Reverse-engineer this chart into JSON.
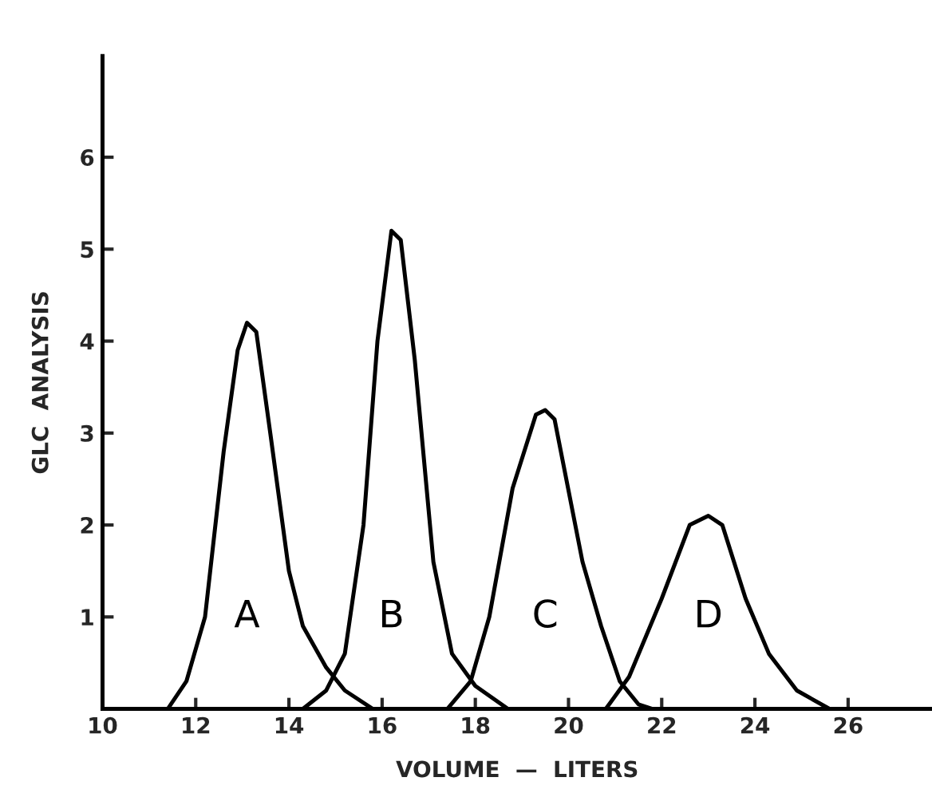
{
  "chart_data": {
    "type": "line",
    "xlabel": "VOLUME  —  LITERS",
    "ylabel": "GLC  ANALYSIS",
    "xlim": [
      10,
      27.8
    ],
    "ylim": [
      0,
      7.1
    ],
    "xticks": [
      10,
      12,
      14,
      16,
      18,
      20,
      22,
      24,
      26
    ],
    "yticks": [
      1,
      2,
      3,
      4,
      5,
      6
    ],
    "grid": false,
    "legend": false,
    "marker": "none",
    "line_style": "solid",
    "series": [
      {
        "name": "A",
        "color": "#000000",
        "x": [
          11.4,
          11.8,
          12.2,
          12.6,
          12.9,
          13.1,
          13.3,
          13.6,
          14.0,
          14.3,
          14.8,
          15.2,
          15.8
        ],
        "values": [
          0,
          0.3,
          1.0,
          2.8,
          3.9,
          4.2,
          4.1,
          3.0,
          1.5,
          0.9,
          0.45,
          0.2,
          0
        ]
      },
      {
        "name": "B",
        "color": "#000000",
        "x": [
          14.3,
          14.8,
          15.2,
          15.6,
          15.9,
          16.2,
          16.4,
          16.7,
          17.1,
          17.5,
          18.0,
          18.7
        ],
        "values": [
          0,
          0.2,
          0.6,
          2.0,
          4.0,
          5.2,
          5.1,
          3.8,
          1.6,
          0.6,
          0.25,
          0
        ]
      },
      {
        "name": "C",
        "color": "#000000",
        "x": [
          17.4,
          17.9,
          18.3,
          18.8,
          19.3,
          19.5,
          19.7,
          20.3,
          20.7,
          21.1,
          21.5,
          21.8
        ],
        "values": [
          0,
          0.3,
          1.0,
          2.4,
          3.2,
          3.25,
          3.15,
          1.6,
          0.9,
          0.3,
          0.05,
          0
        ]
      },
      {
        "name": "D",
        "color": "#000000",
        "x": [
          20.8,
          21.3,
          22.0,
          22.6,
          23.0,
          23.3,
          23.8,
          24.3,
          24.9,
          25.6
        ],
        "values": [
          0,
          0.35,
          1.2,
          2.0,
          2.1,
          2.0,
          1.2,
          0.6,
          0.2,
          0
        ]
      }
    ]
  }
}
